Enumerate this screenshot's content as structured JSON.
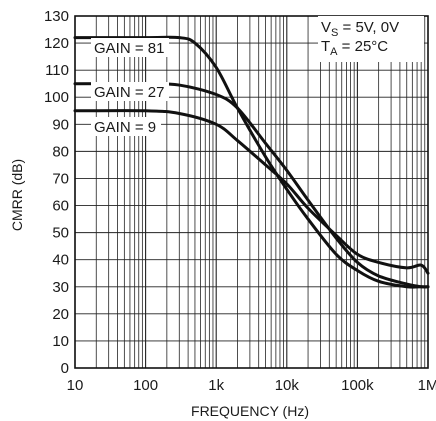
{
  "chart_data": {
    "type": "line",
    "xlabel": "FREQUENCY (Hz)",
    "ylabel": "CMRR (dB)",
    "xscale": "log",
    "xlim": [
      10,
      1000000
    ],
    "ylim": [
      0,
      130
    ],
    "grid": true,
    "x_ticks": [
      {
        "value": 10,
        "label": "10"
      },
      {
        "value": 100,
        "label": "100"
      },
      {
        "value": 1000,
        "label": "1k"
      },
      {
        "value": 10000,
        "label": "10k"
      },
      {
        "value": 100000,
        "label": "100k"
      },
      {
        "value": 1000000,
        "label": "1M"
      }
    ],
    "y_ticks": [
      0,
      10,
      20,
      30,
      40,
      50,
      60,
      70,
      80,
      90,
      100,
      110,
      120,
      130
    ],
    "conditions": {
      "line1_main": "V",
      "line1_sub": "S",
      "line1_rest": " = 5V, 0V",
      "line2_main": "T",
      "line2_sub": "A",
      "line2_rest": " = 25°C"
    },
    "series": [
      {
        "name": "GAIN = 81",
        "x": [
          10,
          100,
          300,
          500,
          1000,
          2000,
          5000,
          10000,
          20000,
          50000,
          100000,
          200000,
          500000,
          800000,
          1000000
        ],
        "y": [
          122,
          122,
          122,
          120,
          111,
          96,
          78,
          66,
          55,
          42,
          36,
          32,
          30,
          30,
          30
        ]
      },
      {
        "name": "GAIN = 27",
        "x": [
          10,
          100,
          300,
          1000,
          2000,
          5000,
          10000,
          20000,
          50000,
          100000,
          200000,
          500000,
          800000,
          1000000
        ],
        "y": [
          105,
          105,
          104.5,
          101,
          96,
          83,
          73,
          62,
          48,
          39,
          34,
          31,
          30,
          30
        ]
      },
      {
        "name": "GAIN = 9",
        "x": [
          10,
          100,
          300,
          1000,
          2000,
          5000,
          10000,
          20000,
          50000,
          100000,
          200000,
          500000,
          800000,
          1000000
        ],
        "y": [
          95,
          95,
          94,
          90,
          84,
          75,
          68,
          59,
          49,
          42,
          39,
          37,
          38,
          35
        ]
      }
    ]
  }
}
